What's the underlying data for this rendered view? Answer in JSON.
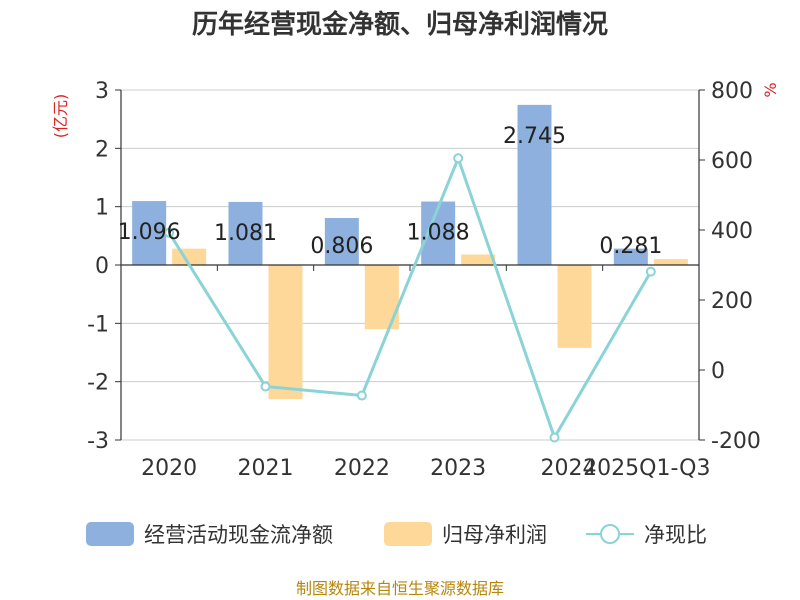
{
  "chart_data": {
    "type": "bar",
    "title": "历年经营现金净额、归母净利润情况",
    "categories": [
      "2020",
      "2021",
      "2022",
      "2023",
      "2024",
      "2025Q1-Q3"
    ],
    "series": [
      {
        "name": "经营活动现金流净额",
        "type": "bar",
        "axis": "left",
        "color": "#8eb0de",
        "values": [
          1.096,
          1.081,
          0.806,
          1.088,
          2.745,
          0.281
        ]
      },
      {
        "name": "归母净利润",
        "type": "bar",
        "axis": "left",
        "color": "#fdd898",
        "values": [
          0.28,
          -2.3,
          -1.1,
          0.18,
          -1.42,
          0.1
        ]
      },
      {
        "name": "净现比",
        "type": "line",
        "axis": "right",
        "color": "#8ad3d6",
        "values": [
          392,
          -47,
          -73,
          605,
          -193,
          281
        ]
      }
    ],
    "data_labels": [
      "1.096",
      "1.081",
      "0.806",
      "1.088",
      "2.745",
      "0.281"
    ],
    "y_left": {
      "label": "(亿元)",
      "min": -3,
      "max": 3,
      "ticks": [
        3,
        2,
        1,
        0,
        -1,
        -2,
        -3
      ]
    },
    "y_right": {
      "label": "%",
      "min": -200,
      "max": 800,
      "ticks": [
        800,
        600,
        400,
        200,
        0,
        -200
      ]
    },
    "grid": true,
    "legend_position": "bottom",
    "source": "制图数据来自恒生聚源数据库"
  }
}
